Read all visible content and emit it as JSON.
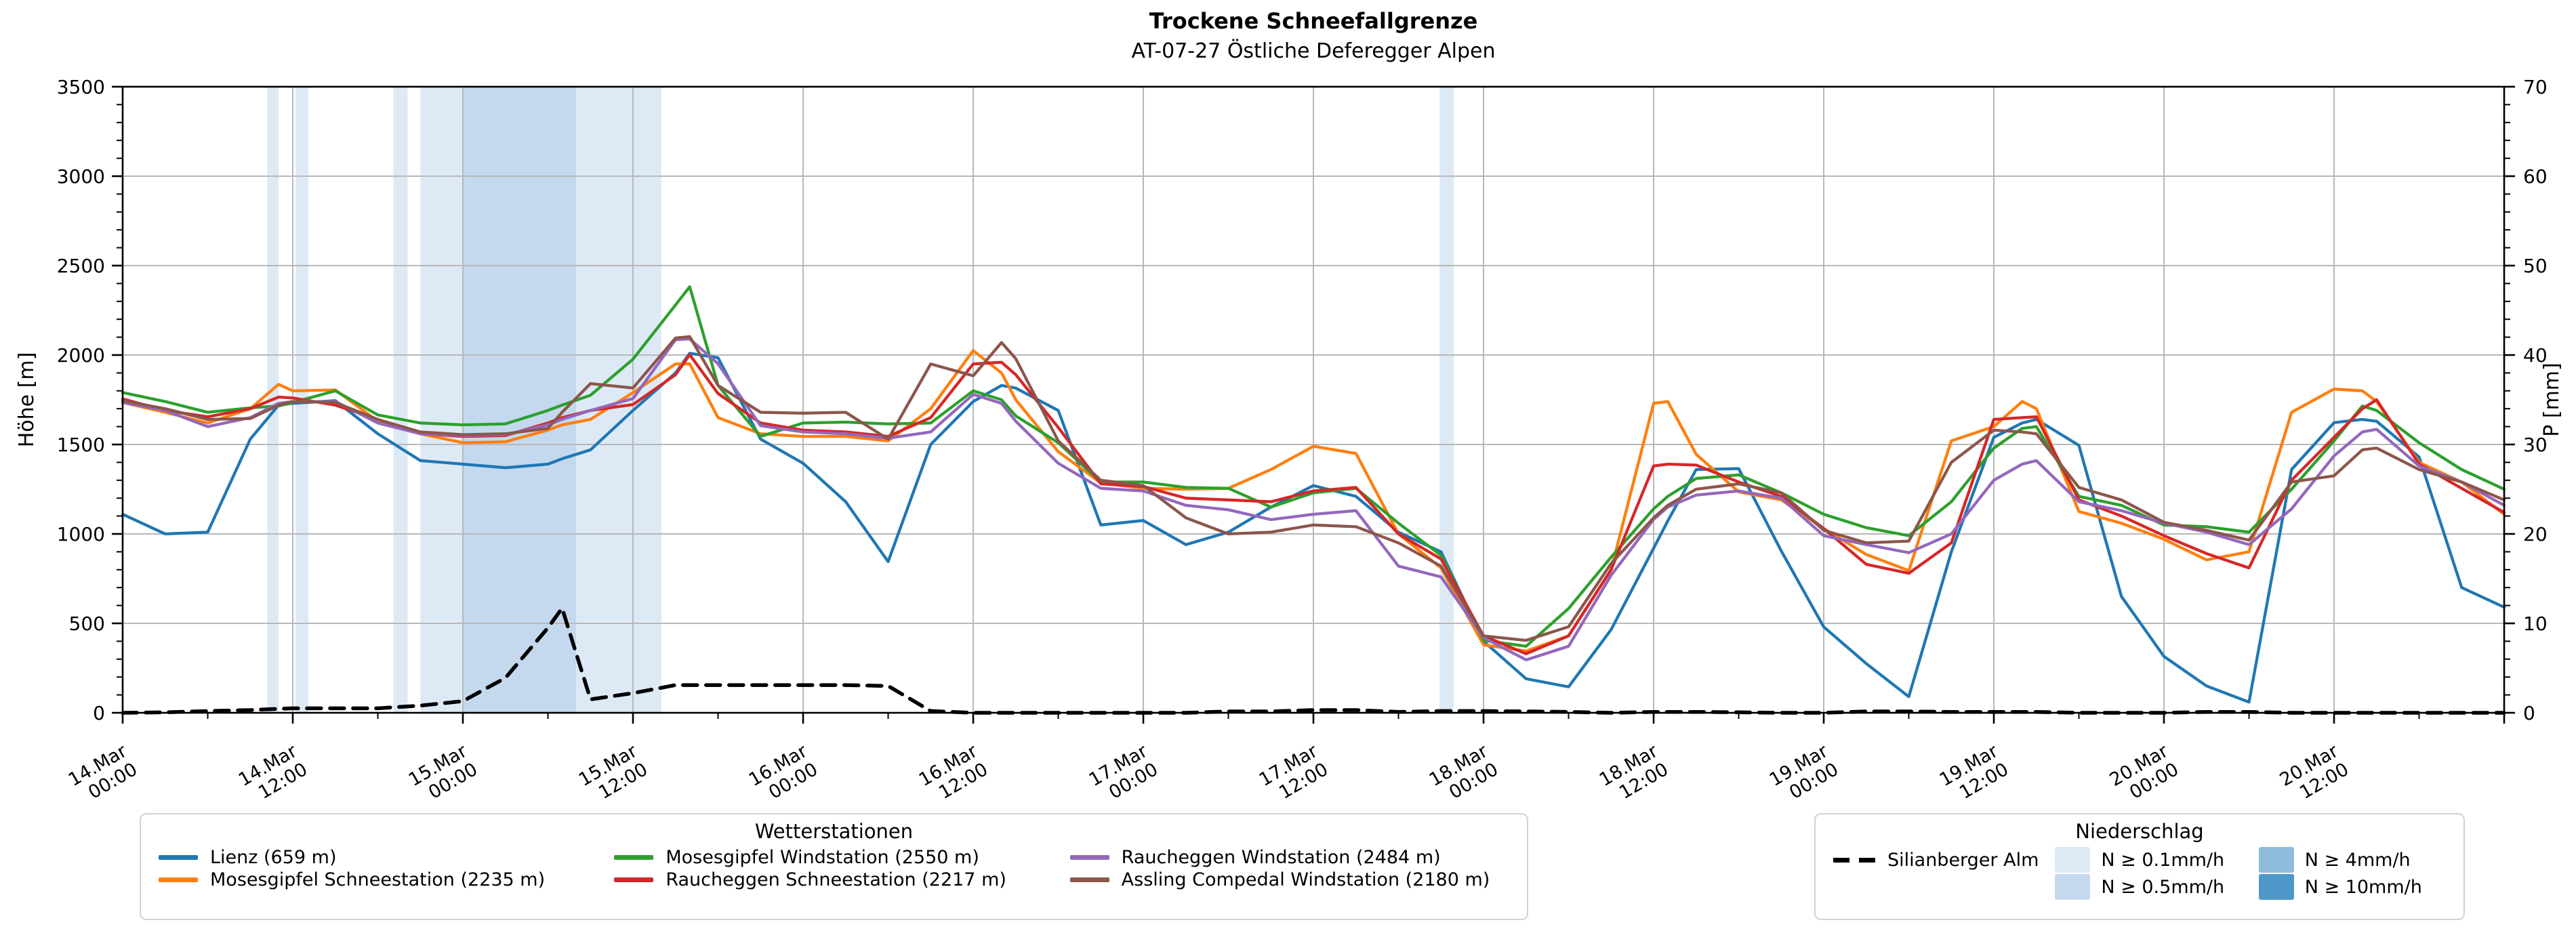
{
  "title": "Trockene Schneefallgrenze",
  "subtitle": "AT-07-27 Östliche Deferegger Alpen",
  "axes": {
    "y_left_label": "Höhe [m]",
    "y_right_label": "P [mm]",
    "y_left_range": [
      0,
      3500
    ],
    "y_right_range": [
      0,
      70
    ],
    "y_left_ticks": [
      0,
      500,
      1000,
      1500,
      2000,
      2500,
      3000,
      3500
    ],
    "y_right_ticks": [
      0,
      10,
      20,
      30,
      40,
      50,
      60,
      70
    ],
    "x_range_hours": [
      0,
      168
    ],
    "x_minor_step_hours": 6,
    "y_left_minor_step": 100,
    "y_right_minor_step": 2,
    "grid": "on",
    "x_ticks": [
      {
        "hour": 0,
        "date": "14.Mar",
        "time": "00:00"
      },
      {
        "hour": 12,
        "date": "14.Mar",
        "time": "12:00"
      },
      {
        "hour": 24,
        "date": "15.Mar",
        "time": "00:00"
      },
      {
        "hour": 36,
        "date": "15.Mar",
        "time": "12:00"
      },
      {
        "hour": 48,
        "date": "16.Mar",
        "time": "00:00"
      },
      {
        "hour": 60,
        "date": "16.Mar",
        "time": "12:00"
      },
      {
        "hour": 72,
        "date": "17.Mar",
        "time": "00:00"
      },
      {
        "hour": 84,
        "date": "17.Mar",
        "time": "12:00"
      },
      {
        "hour": 96,
        "date": "18.Mar",
        "time": "00:00"
      },
      {
        "hour": 108,
        "date": "18.Mar",
        "time": "12:00"
      },
      {
        "hour": 120,
        "date": "19.Mar",
        "time": "00:00"
      },
      {
        "hour": 132,
        "date": "19.Mar",
        "time": "12:00"
      },
      {
        "hour": 144,
        "date": "20.Mar",
        "time": "00:00"
      },
      {
        "hour": 156,
        "date": "20.Mar",
        "time": "12:00"
      }
    ]
  },
  "legend_stations": {
    "title": "Wetterstationen",
    "items": [
      {
        "label": "Lienz (659 m)",
        "color": "#1f77b4"
      },
      {
        "label": "Mosesgipfel Schneestation (2235 m)",
        "color": "#ff7f0e"
      },
      {
        "label": "Mosesgipfel Windstation (2550 m)",
        "color": "#2ca02c"
      },
      {
        "label": "Raucheggen Schneestation (2217 m)",
        "color": "#d62728"
      },
      {
        "label": "Raucheggen Windstation (2484 m)",
        "color": "#9467bd"
      },
      {
        "label": "Assling Compedal Windstation (2180 m)",
        "color": "#8c564b"
      }
    ]
  },
  "legend_precip": {
    "title": "Niederschlag",
    "line_item": {
      "label": "Silianberger Alm",
      "color": "#000000"
    },
    "bands": [
      {
        "category": "0.1",
        "label": "N ≥ 0.1mm/h",
        "color": "#ddeaf6"
      },
      {
        "category": "0.5",
        "label": "N ≥ 0.5mm/h",
        "color": "#c4d9ee"
      },
      {
        "category": "4",
        "label": "N ≥ 4mm/h",
        "color": "#8fbcdd"
      },
      {
        "category": "10",
        "label": "N ≥ 10mm/h",
        "color": "#4e97c9"
      }
    ]
  },
  "chart_data": {
    "type": "line",
    "x_unit": "hours since 14.Mar 00:00",
    "x_hours": [
      0,
      3,
      6,
      9,
      11,
      12,
      15,
      18,
      21,
      24,
      27,
      30,
      31,
      33,
      36,
      39,
      40,
      42,
      45,
      48,
      51,
      54,
      57,
      60,
      62,
      63,
      66,
      69,
      72,
      75,
      78,
      81,
      84,
      87,
      90,
      93,
      96,
      99,
      102,
      105,
      108,
      109,
      111,
      114,
      117,
      120,
      123,
      126,
      129,
      132,
      134,
      135,
      138,
      141,
      144,
      147,
      150,
      153,
      156,
      158,
      159,
      162,
      165,
      168
    ],
    "series": [
      {
        "name": "Lienz (659 m)",
        "color": "#1f77b4",
        "axis": "left",
        "dash": false,
        "values": [
          1110,
          1000,
          1010,
          1530,
          1720,
          1730,
          1745,
          1560,
          1410,
          1390,
          1370,
          1390,
          1420,
          1470,
          1690,
          1900,
          2010,
          1985,
          1530,
          1395,
          1180,
          845,
          1500,
          1740,
          1830,
          1815,
          1690,
          1050,
          1075,
          940,
          1010,
          1150,
          1270,
          1210,
          1010,
          900,
          400,
          190,
          145,
          465,
          920,
          1073,
          1360,
          1365,
          905,
          480,
          275,
          90,
          900,
          1540,
          1620,
          1640,
          1495,
          650,
          315,
          150,
          60,
          1360,
          1622,
          1640,
          1630,
          1430,
          700,
          590
        ]
      },
      {
        "name": "Mosesgipfel Schneestation (2235 m)",
        "color": "#ff7f0e",
        "axis": "left",
        "dash": false,
        "values": [
          1735,
          1680,
          1620,
          1700,
          1836,
          1800,
          1805,
          1630,
          1560,
          1510,
          1515,
          1580,
          1610,
          1640,
          1790,
          1950,
          1951,
          1650,
          1560,
          1545,
          1545,
          1520,
          1700,
          2025,
          1900,
          1750,
          1460,
          1285,
          1255,
          1250,
          1255,
          1360,
          1490,
          1450,
          1000,
          810,
          380,
          345,
          430,
          800,
          1730,
          1740,
          1445,
          1235,
          1190,
          1030,
          885,
          795,
          1520,
          1600,
          1740,
          1700,
          1125,
          1060,
          970,
          855,
          900,
          1680,
          1810,
          1800,
          1740,
          1400,
          1290,
          1110
        ]
      },
      {
        "name": "Mosesgipfel Windstation (2550 m)",
        "color": "#2ca02c",
        "axis": "left",
        "dash": false,
        "values": [
          1790,
          1740,
          1680,
          1705,
          1715,
          1735,
          1800,
          1665,
          1620,
          1610,
          1615,
          1690,
          1720,
          1775,
          1977,
          2280,
          2382,
          1830,
          1545,
          1620,
          1625,
          1615,
          1620,
          1800,
          1750,
          1660,
          1510,
          1290,
          1290,
          1260,
          1255,
          1150,
          1230,
          1255,
          1060,
          880,
          405,
          372,
          583,
          870,
          1140,
          1210,
          1310,
          1330,
          1230,
          1110,
          1035,
          990,
          1180,
          1480,
          1590,
          1600,
          1210,
          1160,
          1050,
          1040,
          1010,
          1250,
          1520,
          1715,
          1690,
          1510,
          1360,
          1250
        ]
      },
      {
        "name": "Raucheggen Schneestation (2217 m)",
        "color": "#d62728",
        "axis": "left",
        "dash": false,
        "values": [
          1755,
          1690,
          1655,
          1700,
          1765,
          1760,
          1720,
          1640,
          1560,
          1545,
          1550,
          1620,
          1650,
          1690,
          1723,
          1890,
          2002,
          1785,
          1620,
          1580,
          1570,
          1545,
          1650,
          1950,
          1960,
          1890,
          1595,
          1280,
          1265,
          1200,
          1190,
          1180,
          1240,
          1260,
          1000,
          860,
          430,
          330,
          430,
          800,
          1380,
          1390,
          1385,
          1290,
          1210,
          1030,
          830,
          780,
          950,
          1640,
          1650,
          1655,
          1190,
          1100,
          990,
          890,
          810,
          1300,
          1540,
          1700,
          1750,
          1390,
          1255,
          1120
        ]
      },
      {
        "name": "Raucheggen Windstation (2484 m)",
        "color": "#9467bd",
        "axis": "left",
        "dash": false,
        "values": [
          1735,
          1690,
          1600,
          1650,
          1730,
          1740,
          1740,
          1620,
          1560,
          1550,
          1555,
          1610,
          1640,
          1690,
          1757,
          2086,
          2090,
          1951,
          1605,
          1570,
          1560,
          1535,
          1570,
          1780,
          1730,
          1630,
          1395,
          1255,
          1240,
          1160,
          1135,
          1080,
          1110,
          1130,
          820,
          760,
          420,
          296,
          372,
          769,
          1081,
          1150,
          1217,
          1240,
          1200,
          990,
          940,
          895,
          1000,
          1300,
          1390,
          1410,
          1180,
          1130,
          1060,
          1010,
          940,
          1140,
          1436,
          1570,
          1585,
          1380,
          1290,
          1160
        ]
      },
      {
        "name": "Assling Compedal Windstation (2180 m)",
        "color": "#8c564b",
        "axis": "left",
        "dash": false,
        "values": [
          1745,
          1700,
          1640,
          1645,
          1720,
          1740,
          1735,
          1640,
          1570,
          1555,
          1560,
          1590,
          1680,
          1840,
          1816,
          2095,
          2103,
          1830,
          1680,
          1675,
          1680,
          1530,
          1950,
          1884,
          2070,
          1980,
          1520,
          1300,
          1270,
          1090,
          1000,
          1010,
          1050,
          1040,
          950,
          820,
          430,
          405,
          481,
          835,
          1090,
          1160,
          1250,
          1280,
          1230,
          1020,
          950,
          960,
          1400,
          1580,
          1570,
          1560,
          1260,
          1190,
          1065,
          1020,
          965,
          1290,
          1325,
          1470,
          1480,
          1360,
          1290,
          1190
        ]
      },
      {
        "name": "Silianberger Alm",
        "color": "#000000",
        "axis": "right",
        "dash": true,
        "values": [
          0,
          0.05,
          0.2,
          0.3,
          0.45,
          0.5,
          0.5,
          0.5,
          0.8,
          1.3,
          3.9,
          9.5,
          11.7,
          1.5,
          2.2,
          3.1,
          3.1,
          3.1,
          3.1,
          3.1,
          3.1,
          3.0,
          0.2,
          0,
          0,
          0,
          0,
          0,
          0,
          0,
          0.15,
          0.15,
          0.3,
          0.3,
          0.1,
          0.2,
          0.2,
          0.15,
          0.1,
          0,
          0.1,
          0.1,
          0.1,
          0.05,
          0,
          0,
          0.15,
          0.15,
          0.1,
          0.1,
          0.1,
          0.1,
          0,
          0,
          0,
          0.1,
          0.1,
          0,
          0,
          0,
          0,
          0,
          0,
          0
        ]
      }
    ],
    "precip_bands": [
      {
        "start_hour": 10.2,
        "end_hour": 11.0,
        "category": "0.1"
      },
      {
        "start_hour": 12.2,
        "end_hour": 13.1,
        "category": "0.1"
      },
      {
        "start_hour": 19.1,
        "end_hour": 20.1,
        "category": "0.1"
      },
      {
        "start_hour": 21.0,
        "end_hour": 24.0,
        "category": "0.1"
      },
      {
        "start_hour": 24.0,
        "end_hour": 32.0,
        "category": "0.5"
      },
      {
        "start_hour": 32.0,
        "end_hour": 38.0,
        "category": "0.1"
      },
      {
        "start_hour": 92.9,
        "end_hour": 93.9,
        "category": "0.1"
      }
    ]
  }
}
